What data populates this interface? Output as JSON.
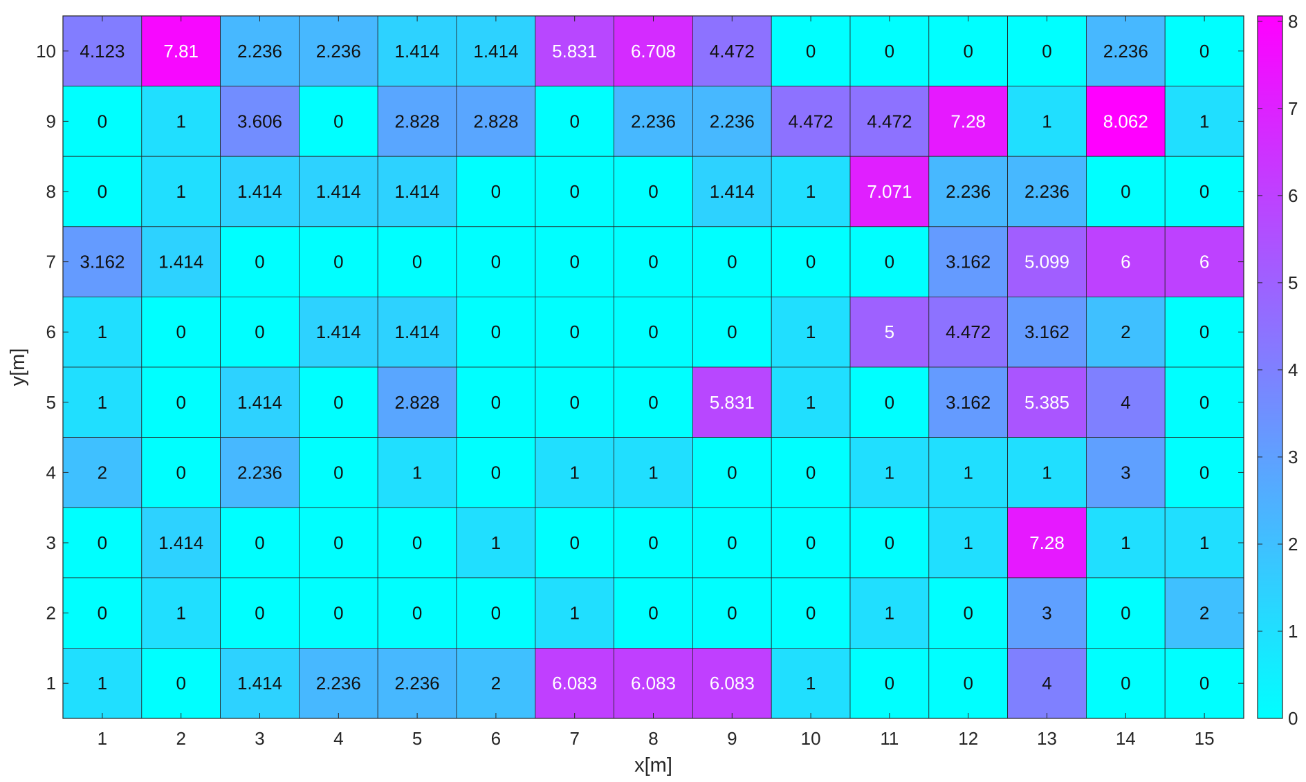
{
  "chart_data": {
    "type": "heatmap",
    "xlabel": "x[m]",
    "ylabel": "y[m]",
    "x": [
      "1",
      "2",
      "3",
      "4",
      "5",
      "6",
      "7",
      "8",
      "9",
      "10",
      "11",
      "12",
      "13",
      "14",
      "15"
    ],
    "y": [
      "10",
      "9",
      "8",
      "7",
      "6",
      "5",
      "4",
      "3",
      "2",
      "1"
    ],
    "values": [
      [
        "4.123",
        "7.81",
        "2.236",
        "2.236",
        "1.414",
        "1.414",
        "5.831",
        "6.708",
        "4.472",
        "0",
        "0",
        "0",
        "0",
        "2.236",
        "0"
      ],
      [
        "0",
        "1",
        "3.606",
        "0",
        "2.828",
        "2.828",
        "0",
        "2.236",
        "2.236",
        "4.472",
        "4.472",
        "7.28",
        "1",
        "8.062",
        "1"
      ],
      [
        "0",
        "1",
        "1.414",
        "1.414",
        "1.414",
        "0",
        "0",
        "0",
        "1.414",
        "1",
        "7.071",
        "2.236",
        "2.236",
        "0",
        "0"
      ],
      [
        "3.162",
        "1.414",
        "0",
        "0",
        "0",
        "0",
        "0",
        "0",
        "0",
        "0",
        "0",
        "3.162",
        "5.099",
        "6",
        "6"
      ],
      [
        "1",
        "0",
        "0",
        "1.414",
        "1.414",
        "0",
        "0",
        "0",
        "0",
        "1",
        "5",
        "4.472",
        "3.162",
        "2",
        "0"
      ],
      [
        "1",
        "0",
        "1.414",
        "0",
        "2.828",
        "0",
        "0",
        "0",
        "5.831",
        "1",
        "0",
        "3.162",
        "5.385",
        "4",
        "0"
      ],
      [
        "2",
        "0",
        "2.236",
        "0",
        "1",
        "0",
        "1",
        "1",
        "0",
        "0",
        "1",
        "1",
        "1",
        "3",
        "0"
      ],
      [
        "0",
        "1.414",
        "0",
        "0",
        "0",
        "1",
        "0",
        "0",
        "0",
        "0",
        "0",
        "1",
        "7.28",
        "1",
        "1"
      ],
      [
        "0",
        "1",
        "0",
        "0",
        "0",
        "0",
        "1",
        "0",
        "0",
        "0",
        "1",
        "0",
        "3",
        "0",
        "2"
      ],
      [
        "1",
        "0",
        "1.414",
        "2.236",
        "2.236",
        "2",
        "6.083",
        "6.083",
        "6.083",
        "1",
        "0",
        "0",
        "4",
        "0",
        "0"
      ]
    ],
    "colorbar": {
      "ticks": [
        "0",
        "1",
        "2",
        "3",
        "4",
        "5",
        "6",
        "7",
        "8"
      ],
      "range": [
        0,
        8.062
      ]
    },
    "colormap": "cool",
    "color_low": "#00ffff",
    "color_high": "#ff00ff",
    "grid": true
  }
}
